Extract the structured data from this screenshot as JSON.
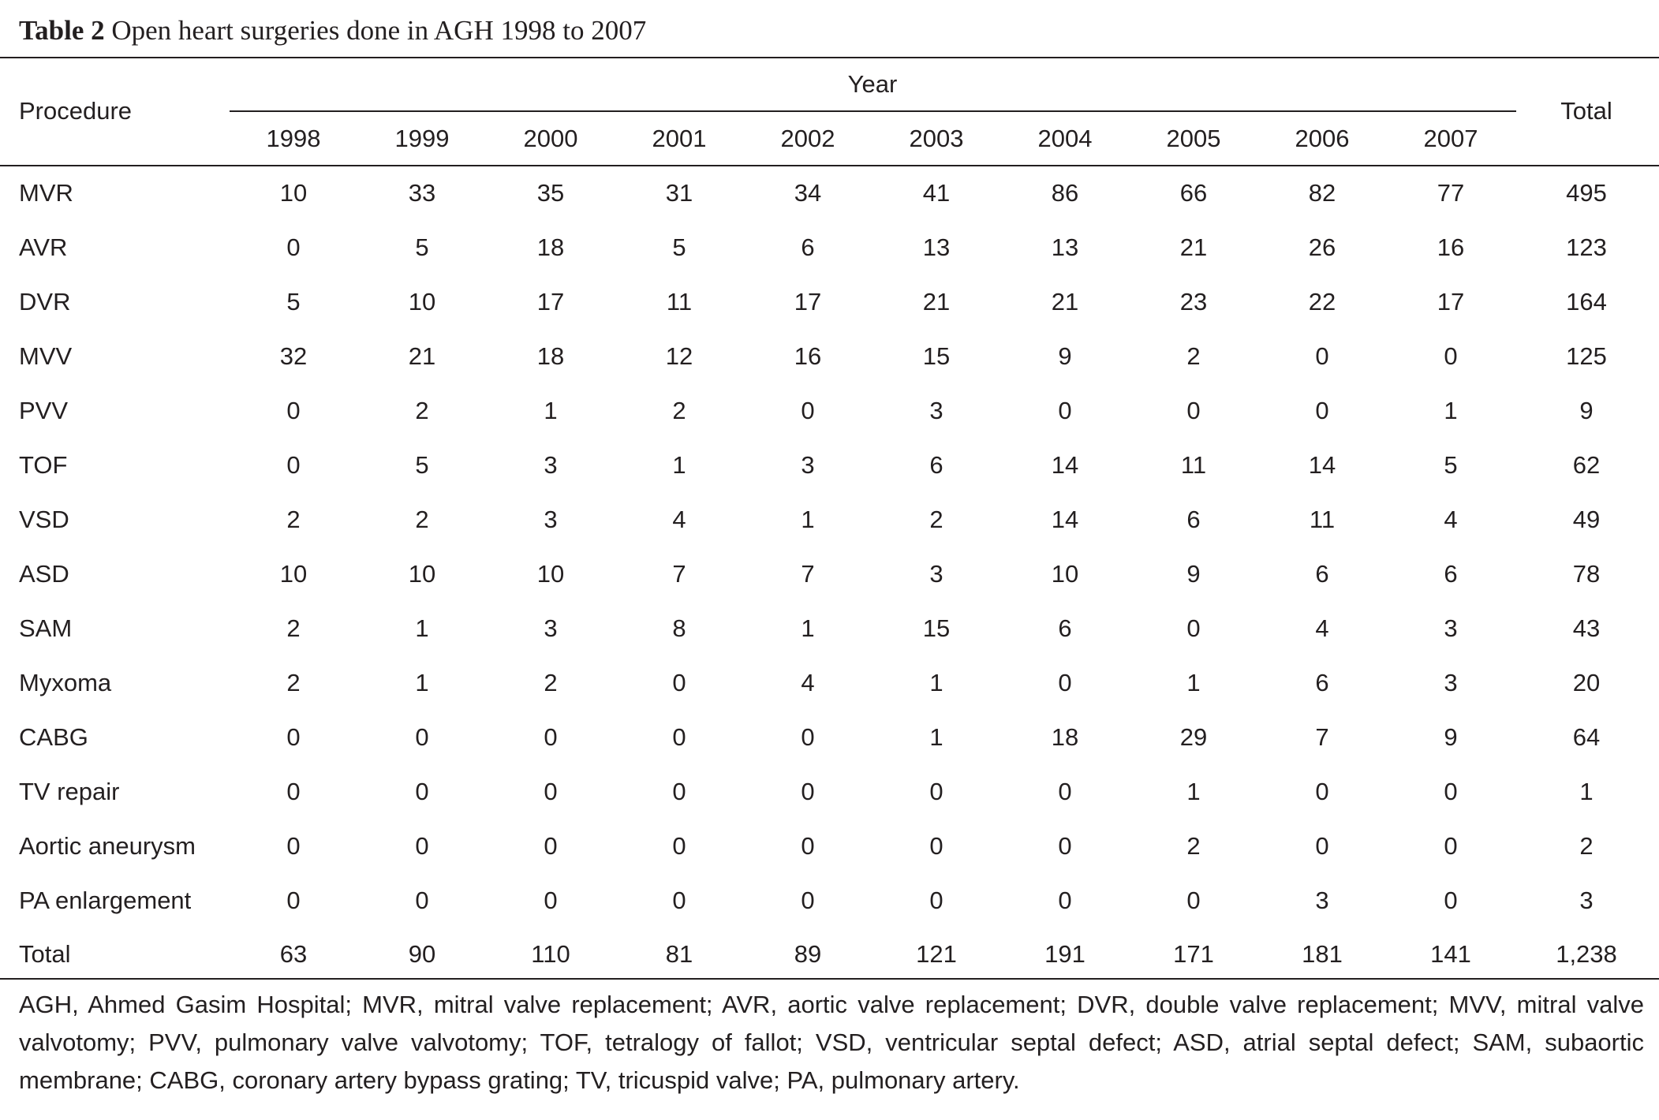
{
  "caption": {
    "label": "Table 2",
    "title": "Open heart surgeries done in AGH 1998 to 2007"
  },
  "header": {
    "procedure": "Procedure",
    "year_group": "Year",
    "years": [
      "1998",
      "1999",
      "2000",
      "2001",
      "2002",
      "2003",
      "2004",
      "2005",
      "2006",
      "2007"
    ],
    "total": "Total"
  },
  "rows": [
    {
      "procedure": "MVR",
      "values": [
        "10",
        "33",
        "35",
        "31",
        "34",
        "41",
        "86",
        "66",
        "82",
        "77"
      ],
      "total": "495"
    },
    {
      "procedure": "AVR",
      "values": [
        "0",
        "5",
        "18",
        "5",
        "6",
        "13",
        "13",
        "21",
        "26",
        "16"
      ],
      "total": "123"
    },
    {
      "procedure": "DVR",
      "values": [
        "5",
        "10",
        "17",
        "11",
        "17",
        "21",
        "21",
        "23",
        "22",
        "17"
      ],
      "total": "164"
    },
    {
      "procedure": "MVV",
      "values": [
        "32",
        "21",
        "18",
        "12",
        "16",
        "15",
        "9",
        "2",
        "0",
        "0"
      ],
      "total": "125"
    },
    {
      "procedure": "PVV",
      "values": [
        "0",
        "2",
        "1",
        "2",
        "0",
        "3",
        "0",
        "0",
        "0",
        "1"
      ],
      "total": "9"
    },
    {
      "procedure": "TOF",
      "values": [
        "0",
        "5",
        "3",
        "1",
        "3",
        "6",
        "14",
        "11",
        "14",
        "5"
      ],
      "total": "62"
    },
    {
      "procedure": "VSD",
      "values": [
        "2",
        "2",
        "3",
        "4",
        "1",
        "2",
        "14",
        "6",
        "11",
        "4"
      ],
      "total": "49"
    },
    {
      "procedure": "ASD",
      "values": [
        "10",
        "10",
        "10",
        "7",
        "7",
        "3",
        "10",
        "9",
        "6",
        "6"
      ],
      "total": "78"
    },
    {
      "procedure": "SAM",
      "values": [
        "2",
        "1",
        "3",
        "8",
        "1",
        "15",
        "6",
        "0",
        "4",
        "3"
      ],
      "total": "43"
    },
    {
      "procedure": "Myxoma",
      "values": [
        "2",
        "1",
        "2",
        "0",
        "4",
        "1",
        "0",
        "1",
        "6",
        "3"
      ],
      "total": "20"
    },
    {
      "procedure": "CABG",
      "values": [
        "0",
        "0",
        "0",
        "0",
        "0",
        "1",
        "18",
        "29",
        "7",
        "9"
      ],
      "total": "64"
    },
    {
      "procedure": "TV repair",
      "values": [
        "0",
        "0",
        "0",
        "0",
        "0",
        "0",
        "0",
        "1",
        "0",
        "0"
      ],
      "total": "1"
    },
    {
      "procedure": "Aortic aneurysm",
      "values": [
        "0",
        "0",
        "0",
        "0",
        "0",
        "0",
        "0",
        "2",
        "0",
        "0"
      ],
      "total": "2"
    },
    {
      "procedure": "PA enlargement",
      "values": [
        "0",
        "0",
        "0",
        "0",
        "0",
        "0",
        "0",
        "0",
        "3",
        "0"
      ],
      "total": "3"
    },
    {
      "procedure": "Total",
      "values": [
        "63",
        "90",
        "110",
        "81",
        "89",
        "121",
        "191",
        "171",
        "181",
        "141"
      ],
      "total": "1,238"
    }
  ],
  "footnote": "AGH, Ahmed Gasim Hospital; MVR, mitral valve replacement; AVR, aortic valve replacement; DVR, double valve replacement; MVV, mitral valve valvotomy; PVV, pulmonary valve valvotomy; TOF, tetralogy of fallot; VSD, ventricular septal defect; ASD, atrial septal defect; SAM, subaortic membrane; CABG, coronary artery bypass grating; TV, tricuspid valve; PA, pulmonary artery."
}
